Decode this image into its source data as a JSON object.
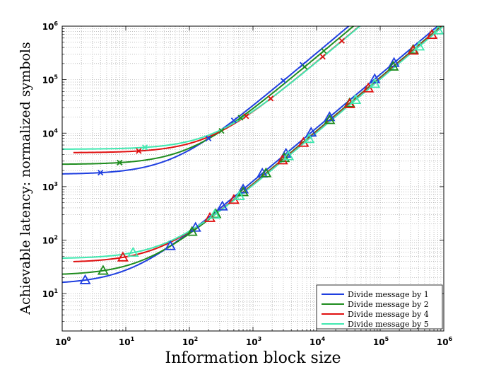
{
  "chart_data": {
    "type": "line",
    "xlabel": "Information block size",
    "ylabel": "Achievable latency: normalized symbols",
    "xscale": "log",
    "yscale": "log",
    "xlim": [
      1,
      1000000
    ],
    "ylim": [
      2,
      1000000
    ],
    "x_ticks": [
      {
        "base": "10",
        "exp": "0",
        "value": 1
      },
      {
        "base": "10",
        "exp": "1",
        "value": 10
      },
      {
        "base": "10",
        "exp": "2",
        "value": 100
      },
      {
        "base": "10",
        "exp": "3",
        "value": 1000
      },
      {
        "base": "10",
        "exp": "4",
        "value": 10000
      },
      {
        "base": "10",
        "exp": "5",
        "value": 100000
      },
      {
        "base": "10",
        "exp": "6",
        "value": 1000000
      }
    ],
    "y_ticks": [
      {
        "base": "10",
        "exp": "1",
        "value": 10
      },
      {
        "base": "10",
        "exp": "2",
        "value": 100
      },
      {
        "base": "10",
        "exp": "3",
        "value": 1000
      },
      {
        "base": "10",
        "exp": "4",
        "value": 10000
      },
      {
        "base": "10",
        "exp": "5",
        "value": 100000
      },
      {
        "base": "10",
        "exp": "6",
        "value": 1000000
      }
    ],
    "grid": "major and minor, dotted",
    "legend_position": "bottom-right",
    "series": [
      {
        "name": "Divide message by 1",
        "divisor": 1,
        "color": "#1f3fe0",
        "x_curve": [
          1,
          1000000
        ],
        "families": [
          {
            "marker": "x",
            "base": 1700,
            "slope": 31.25,
            "markers_x": [
              4,
              200,
              500,
              3000,
              6000
            ]
          },
          {
            "marker": "triangle",
            "base": 15,
            "slope": 1.25,
            "markers_x": [
              2.3,
              50,
              125,
              330,
              700,
              1400,
              3300,
              8200,
              16000,
              82000,
              165000
            ]
          }
        ]
      },
      {
        "name": "Divide message by 2",
        "divisor": 2,
        "color": "#1e8c1e",
        "x_curve": [
          1,
          1000000
        ],
        "families": [
          {
            "marker": "x",
            "base": 2600,
            "slope": 26.3,
            "markers_x": [
              8,
              320,
              640,
              6500,
              13000
            ]
          },
          {
            "marker": "triangle",
            "base": 22,
            "slope": 1.1,
            "markers_x": [
              4.4,
              110,
              260,
              700,
              1600,
              3100,
              16000,
              33000,
              160000,
              330000
            ]
          }
        ]
      },
      {
        "name": "Divide message by 4",
        "divisor": 4,
        "color": "#e01010",
        "x_curve": [
          1.5,
          1000000
        ],
        "families": [
          {
            "marker": "x",
            "base": 4300,
            "slope": 21.1,
            "markers_x": [
              16,
              780,
              1900,
              12500,
              25000
            ]
          },
          {
            "marker": "triangle",
            "base": 38,
            "slope": 1.06,
            "markers_x": [
              9,
              210,
              500,
              2900,
              6200,
              33000,
              65000,
              330000,
              650000
            ]
          }
        ]
      },
      {
        "name": "Divide message by 5",
        "divisor": 5,
        "color": "#40e8b0",
        "x_curve": [
          1,
          1000000
        ],
        "families": [
          {
            "marker": "x",
            "base": 5000,
            "slope": 20.8,
            "markers_x": [
              20
            ]
          },
          {
            "marker": "triangle",
            "base": 45,
            "slope": 1.02,
            "markers_x": [
              13,
              250,
              610,
              3600,
              7600,
              41000,
              82000,
              410000,
              820000
            ]
          }
        ]
      }
    ]
  }
}
